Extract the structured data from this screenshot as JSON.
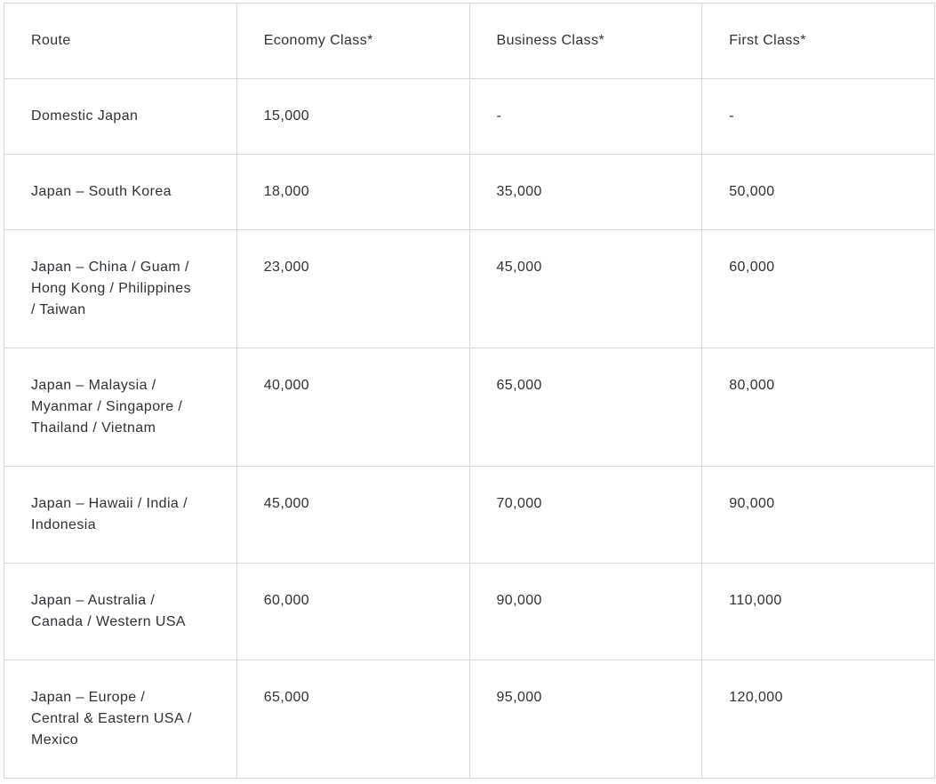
{
  "table": {
    "columns": [
      {
        "label": "Route"
      },
      {
        "label": "Economy Class*"
      },
      {
        "label": "Business Class*"
      },
      {
        "label": "First Class*"
      }
    ],
    "rows": [
      {
        "route": "Domestic Japan",
        "economy": "15,000",
        "business": "-",
        "first": "-"
      },
      {
        "route": "Japan – South Korea",
        "economy": "18,000",
        "business": "35,000",
        "first": "50,000"
      },
      {
        "route": "Japan – China / Guam / Hong Kong / Philippines / Taiwan",
        "economy": "23,000",
        "business": "45,000",
        "first": "60,000"
      },
      {
        "route": "Japan – Malaysia / Myanmar / Singapore / Thailand / Vietnam",
        "economy": "40,000",
        "business": "65,000",
        "first": "80,000"
      },
      {
        "route": "Japan – Hawaii / India / Indonesia",
        "economy": "45,000",
        "business": "70,000",
        "first": "90,000"
      },
      {
        "route": "Japan – Australia / Canada / Western USA",
        "economy": "60,000",
        "business": "90,000",
        "first": "110,000"
      },
      {
        "route": "Japan – Europe / Central & Eastern USA / Mexico",
        "economy": "65,000",
        "business": "95,000",
        "first": "120,000"
      }
    ]
  },
  "colors": {
    "text": "#303036",
    "border": "#d9d9d9",
    "background": "#ffffff"
  }
}
